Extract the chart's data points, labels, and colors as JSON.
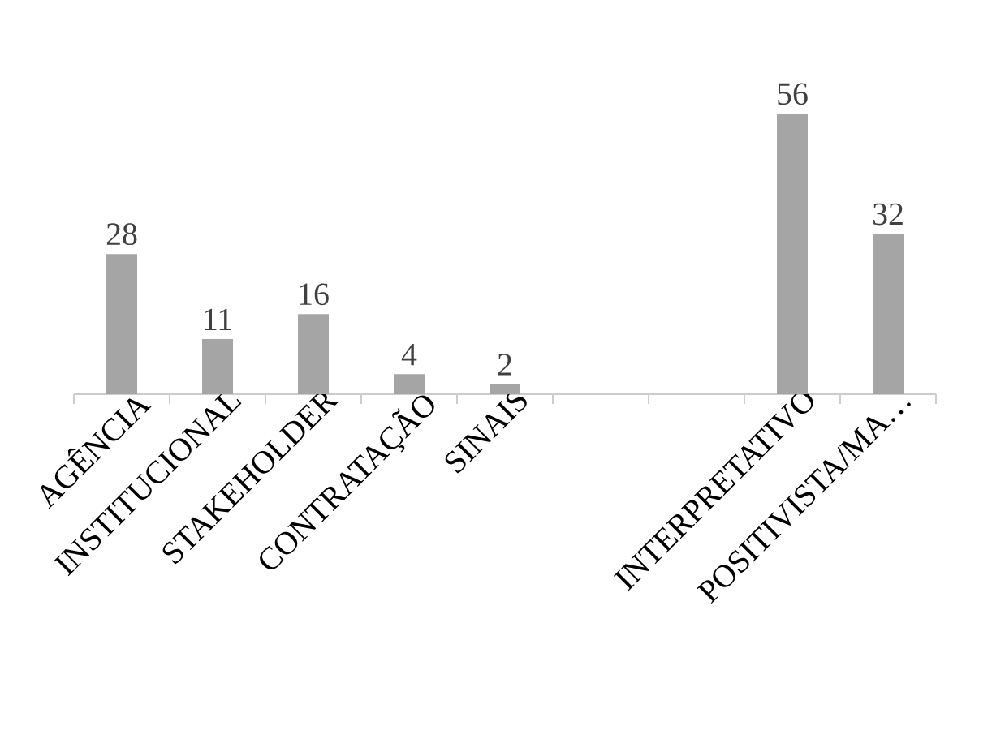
{
  "chart_data": {
    "type": "bar",
    "categories": [
      "AGÊNCIA",
      "INSTITUCIONAL",
      "STAKEHOLDER",
      "CONTRATAÇÃO",
      "SINAIS",
      null,
      null,
      "INTERPRETATIVO",
      "POSITIVISTA/MA…"
    ],
    "values": [
      28,
      11,
      16,
      4,
      2,
      null,
      null,
      56,
      32
    ],
    "color": "#a5a5a5",
    "data_labels": true
  }
}
